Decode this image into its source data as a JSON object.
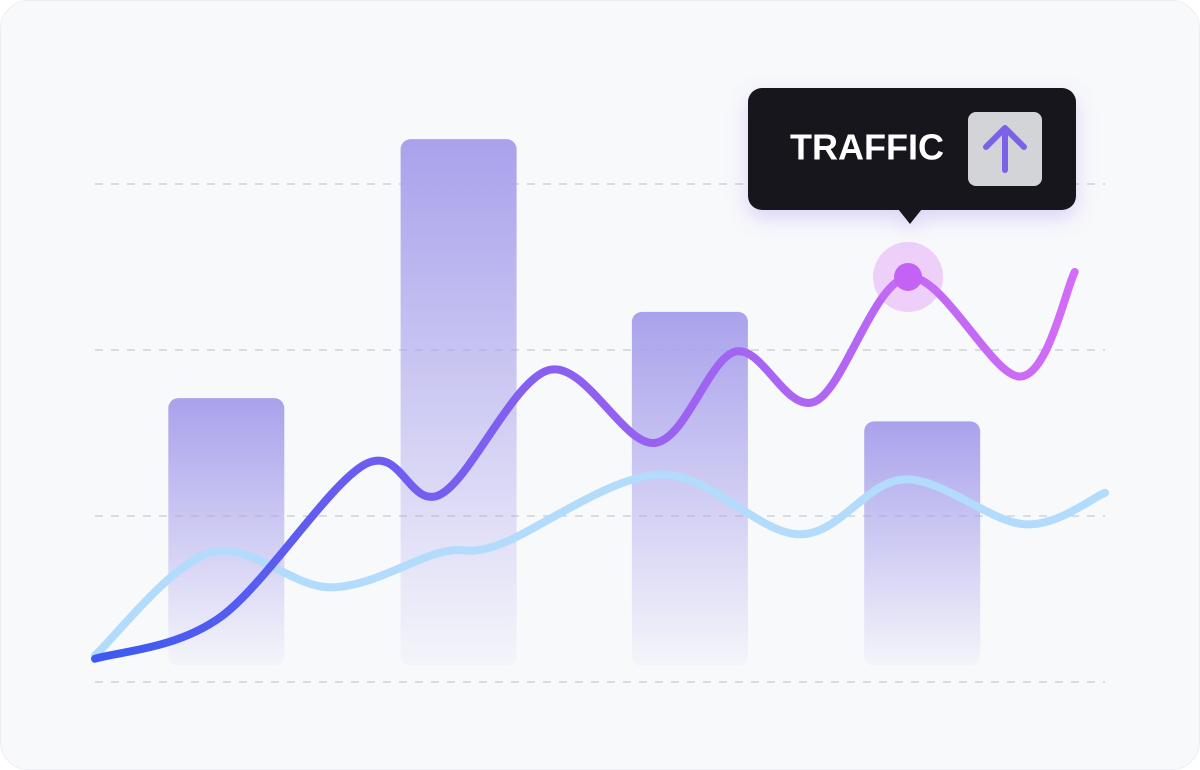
{
  "chart_data": {
    "type": "bar-line",
    "annotation": "TRAFFIC",
    "categories": [
      null,
      null,
      null,
      null
    ],
    "bar_x": [
      1.3,
      3.6,
      5.89,
      8.19
    ],
    "values": [
      1.71,
      3.27,
      2.23,
      1.57
    ],
    "color": "#9f97ea",
    "series": [
      {
        "color": "#3d5af1",
        "x": [
          0,
          1.24,
          2.67,
          3.42,
          4.5,
          5.54,
          6.34,
          7.13,
          8.05,
          9.16,
          9.7
        ],
        "values": [
          0.14,
          0.39,
          1.31,
          1.13,
          1.88,
          1.44,
          1.99,
          1.69,
          2.44,
          1.84,
          2.47
        ]
      },
      {
        "color": "#b3dbfb",
        "x": [
          0,
          1.14,
          2.33,
          3.42,
          4.01,
          5.59,
          6.97,
          8.01,
          9.2,
          10
        ],
        "values": [
          0.16,
          0.78,
          0.57,
          0.78,
          0.83,
          1.25,
          0.89,
          1.22,
          0.95,
          1.14
        ]
      }
    ],
    "highlight": {
      "series": 0,
      "index": 8
    },
    "xlim": [
      0,
      10
    ],
    "ylim": [
      0,
      3.5
    ],
    "yticks": [
      0,
      1,
      2,
      3
    ],
    "grid": true
  }
}
